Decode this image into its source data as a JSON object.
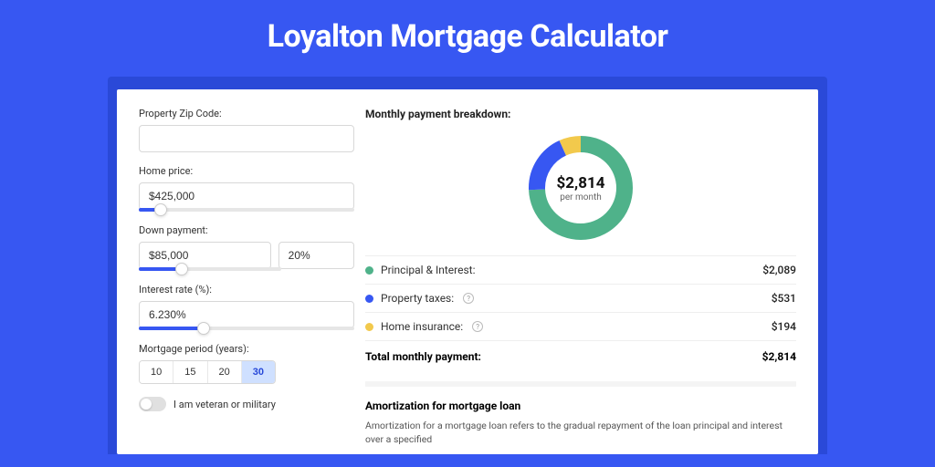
{
  "page": {
    "title": "Loyalton Mortgage Calculator",
    "background_color": "#3757f2",
    "accent_band_color": "#2a49d8"
  },
  "form": {
    "zip": {
      "label": "Property Zip Code:",
      "value": ""
    },
    "home_price": {
      "label": "Home price:",
      "value": "$425,000",
      "slider_pct": 10
    },
    "down_payment": {
      "label": "Down payment:",
      "amount": "$85,000",
      "percent": "20%",
      "slider_pct": 20
    },
    "interest_rate": {
      "label": "Interest rate (%):",
      "value": "6.230%",
      "slider_pct": 30
    },
    "period": {
      "label": "Mortgage period (years):",
      "options": [
        "10",
        "15",
        "20",
        "30"
      ],
      "selected_index": 3
    },
    "veteran": {
      "label": "I am veteran or military",
      "enabled": false
    }
  },
  "breakdown": {
    "title": "Monthly payment breakdown:",
    "center_value": "$2,814",
    "center_sub": "per month",
    "donut": {
      "radius": 48,
      "stroke": 18,
      "segments": [
        {
          "name": "principal_interest",
          "value": 2089,
          "color": "#4fb28a"
        },
        {
          "name": "property_taxes",
          "value": 531,
          "color": "#3757f2"
        },
        {
          "name": "home_insurance",
          "value": 194,
          "color": "#f2c94c"
        }
      ]
    },
    "items": [
      {
        "label": "Principal & Interest:",
        "value": "$2,089",
        "color": "#4fb28a",
        "help": false
      },
      {
        "label": "Property taxes:",
        "value": "$531",
        "color": "#3757f2",
        "help": true
      },
      {
        "label": "Home insurance:",
        "value": "$194",
        "color": "#f2c94c",
        "help": true
      }
    ],
    "total_label": "Total monthly payment:",
    "total_value": "$2,814"
  },
  "amortization": {
    "title": "Amortization for mortgage loan",
    "text": "Amortization for a mortgage loan refers to the gradual repayment of the loan principal and interest over a specified"
  }
}
